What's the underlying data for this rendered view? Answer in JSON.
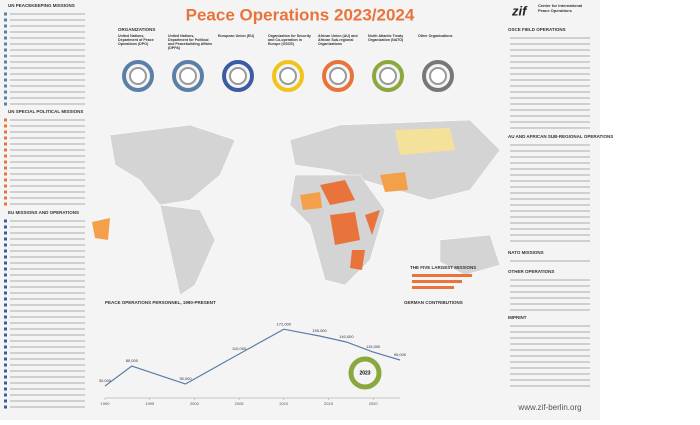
{
  "header": {
    "title": "Peace Operations 2023/2024",
    "logo": "zif",
    "logo_text": "Center for International Peace Operations"
  },
  "organizations": {
    "heading": "ORGANIZATIONS",
    "items": [
      "United Nations, Department of Peace Operations (DPO)",
      "United Nations, Department for Political and Peacebuilding Affairs (DPPA)",
      "European Union (EU)",
      "Organization for Security and Co-operation in Europe (OSCE)",
      "African Union (AU) and African Sub-regional Organizations",
      "North Atlantic Treaty Organization (NATO)",
      "Other Organizations"
    ]
  },
  "left_sections": [
    "UN PEACEKEEPING MISSIONS",
    "UN SPECIAL POLITICAL MISSIONS",
    "EU MISSIONS AND OPERATIONS"
  ],
  "right_sections": [
    "OSCE FIELD OPERATIONS",
    "AU AND AFRICAN SUB-REGIONAL OPERATIONS",
    "NATO MISSIONS",
    "OTHER OPERATIONS",
    "IMPRINT"
  ],
  "largest_missions": {
    "heading": "THE FIVE LARGEST MISSIONS"
  },
  "german": {
    "heading": "GERMAN CONTRIBUTIONS",
    "center": "2023"
  },
  "footer": {
    "url": "www.zif-berlin.org"
  },
  "chart_data": {
    "type": "line",
    "title": "PEACE OPERATIONS PERSONNEL, 1990-PRESENT",
    "x": [
      1990,
      1993,
      1999,
      2005,
      2010,
      2014,
      2017,
      2020,
      2023
    ],
    "values": [
      30000,
      80000,
      35000,
      110000,
      172000,
      155000,
      140000,
      115000,
      95000
    ],
    "value_labels": [
      "30,000",
      "80,000",
      "35,000",
      "110,000",
      "172,000",
      "155,000",
      "140,000",
      "115,000",
      "95,000"
    ],
    "color": "#5b7fa6",
    "xlim": [
      1990,
      2023
    ],
    "ylim": [
      0,
      200000
    ],
    "xticks": [
      1990,
      1995,
      2000,
      2005,
      2010,
      2015,
      2020
    ]
  }
}
